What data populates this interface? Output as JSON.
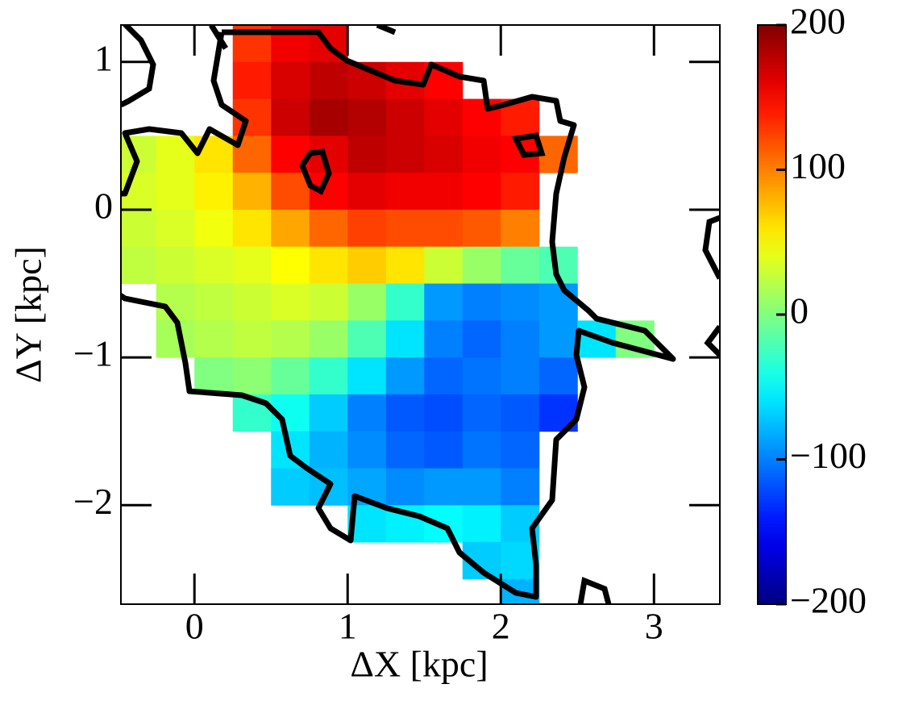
{
  "chart_data": {
    "type": "heatmap",
    "colormap": "jet",
    "x_label": "ΔX [kpc]",
    "y_label": "ΔY [kpc]",
    "x": [
      -0.375,
      -0.125,
      0.125,
      0.375,
      0.625,
      0.875,
      1.125,
      1.375,
      1.625,
      1.875,
      2.125,
      2.375,
      2.625,
      2.875,
      3.125,
      3.375
    ],
    "y": [
      1.125,
      0.875,
      0.625,
      0.375,
      0.125,
      -0.125,
      -0.375,
      -0.625,
      -0.875,
      -1.125,
      -1.375,
      -1.625,
      -1.875,
      -2.125,
      -2.375,
      -2.625
    ],
    "z": [
      [
        null,
        null,
        null,
        130,
        155,
        160,
        null,
        null,
        null,
        null,
        null,
        null,
        null,
        null,
        null,
        null
      ],
      [
        null,
        null,
        null,
        140,
        165,
        175,
        170,
        160,
        150,
        null,
        null,
        null,
        null,
        null,
        null,
        null
      ],
      [
        null,
        null,
        null,
        130,
        170,
        185,
        180,
        170,
        160,
        150,
        140,
        null,
        null,
        null,
        null,
        null
      ],
      [
        30,
        40,
        60,
        110,
        150,
        160,
        175,
        170,
        165,
        155,
        150,
        110,
        null,
        null,
        null,
        null
      ],
      [
        35,
        40,
        55,
        80,
        120,
        150,
        160,
        155,
        155,
        150,
        140,
        null,
        null,
        null,
        null,
        null
      ],
      [
        30,
        35,
        45,
        60,
        85,
        110,
        125,
        120,
        120,
        115,
        100,
        null,
        null,
        null,
        null,
        null
      ],
      [
        25,
        30,
        35,
        40,
        50,
        60,
        70,
        60,
        30,
        10,
        -10,
        -20,
        null,
        null,
        null,
        null
      ],
      [
        null,
        20,
        25,
        30,
        35,
        30,
        10,
        -30,
        -90,
        -100,
        -95,
        -90,
        null,
        null,
        null,
        null
      ],
      [
        null,
        15,
        20,
        25,
        20,
        10,
        -20,
        -60,
        -100,
        -110,
        -100,
        -90,
        -60,
        0,
        null,
        null
      ],
      [
        null,
        null,
        0,
        5,
        -10,
        -30,
        -60,
        -90,
        -110,
        -105,
        -100,
        -110,
        null,
        null,
        null,
        null
      ],
      [
        null,
        null,
        null,
        -30,
        -45,
        -70,
        -100,
        -115,
        -120,
        -110,
        -115,
        -130,
        null,
        null,
        null,
        null
      ],
      [
        null,
        null,
        null,
        null,
        -60,
        -80,
        -95,
        -110,
        -115,
        -105,
        -110,
        null,
        null,
        null,
        null,
        null
      ],
      [
        null,
        null,
        null,
        null,
        -70,
        -75,
        -85,
        -95,
        -90,
        -90,
        -100,
        null,
        null,
        null,
        null,
        null
      ],
      [
        null,
        null,
        null,
        null,
        null,
        null,
        -60,
        -55,
        -50,
        -55,
        -70,
        null,
        null,
        null,
        null,
        null
      ],
      [
        null,
        null,
        null,
        null,
        null,
        null,
        null,
        null,
        null,
        -70,
        -65,
        null,
        null,
        null,
        null,
        null
      ],
      [
        null,
        null,
        null,
        null,
        null,
        null,
        null,
        null,
        null,
        null,
        -80,
        null,
        null,
        null,
        null,
        null
      ]
    ],
    "xlim": [
      -0.48,
      3.43
    ],
    "ylim": [
      -2.67,
      1.25
    ],
    "xticks": [
      0,
      1,
      2,
      3
    ],
    "yticks": [
      1,
      0,
      {
        "value": -1,
        "label": "−1"
      },
      {
        "value": -2,
        "label": "−2"
      }
    ],
    "zlim": [
      -200,
      200
    ],
    "zticks": [
      {
        "value": -200,
        "label": "−200"
      },
      {
        "value": -100,
        "label": "−100"
      },
      0,
      100,
      200
    ]
  }
}
